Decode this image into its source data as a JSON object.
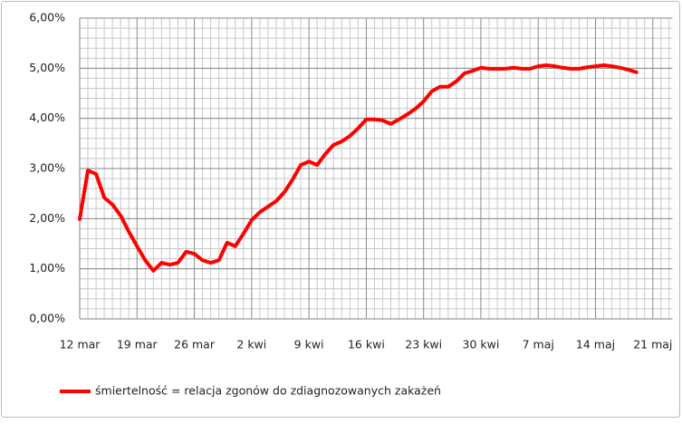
{
  "chart_data": {
    "type": "line",
    "categories": [
      "12 mar",
      null,
      null,
      null,
      null,
      null,
      null,
      "19 mar",
      null,
      null,
      null,
      null,
      null,
      null,
      "26 mar",
      null,
      null,
      null,
      null,
      null,
      null,
      "2 kwi",
      null,
      null,
      null,
      null,
      null,
      null,
      "9 kwi",
      null,
      null,
      null,
      null,
      null,
      null,
      "16 kwi",
      null,
      null,
      null,
      null,
      null,
      null,
      "23 kwi",
      null,
      null,
      null,
      null,
      null,
      null,
      "30 kwi",
      null,
      null,
      null,
      null,
      null,
      null,
      "7 maj",
      null,
      null,
      null,
      null,
      null,
      null,
      "14 maj",
      null,
      null,
      null,
      null,
      null,
      null,
      "21 maj"
    ],
    "series": [
      {
        "name": "śmiertelność = relacja zgonów do zdiagnozowanych  zakażeń",
        "color": "#ff0000",
        "values": [
          1.99,
          2.96,
          2.89,
          2.42,
          2.28,
          2.06,
          1.74,
          1.45,
          1.17,
          0.96,
          1.12,
          1.08,
          1.12,
          1.34,
          1.3,
          1.17,
          1.12,
          1.17,
          1.52,
          1.45,
          1.7,
          1.97,
          2.13,
          2.24,
          2.35,
          2.53,
          2.78,
          3.07,
          3.14,
          3.07,
          3.29,
          3.47,
          3.54,
          3.65,
          3.8,
          3.98,
          3.98,
          3.96,
          3.89,
          3.98,
          4.08,
          4.19,
          4.34,
          4.54,
          4.63,
          4.63,
          4.74,
          4.9,
          4.95,
          5.01,
          4.99,
          4.99,
          4.99,
          5.01,
          4.99,
          4.99,
          5.04,
          5.06,
          5.04,
          5.01,
          4.99,
          4.99,
          5.02,
          5.04,
          5.06,
          5.04,
          5.01,
          4.97,
          4.92,
          null,
          null
        ]
      }
    ],
    "ylim": [
      0,
      6
    ],
    "yticks": [
      {
        "value": 0,
        "label": "0,00%"
      },
      {
        "value": 1,
        "label": "1,00%"
      },
      {
        "value": 2,
        "label": "2,00%"
      },
      {
        "value": 3,
        "label": "3,00%"
      },
      {
        "value": 4,
        "label": "4,00%"
      },
      {
        "value": 5,
        "label": "5,00%"
      },
      {
        "value": 6,
        "label": "6,00%"
      }
    ],
    "grid": true,
    "legend": "bottom"
  }
}
